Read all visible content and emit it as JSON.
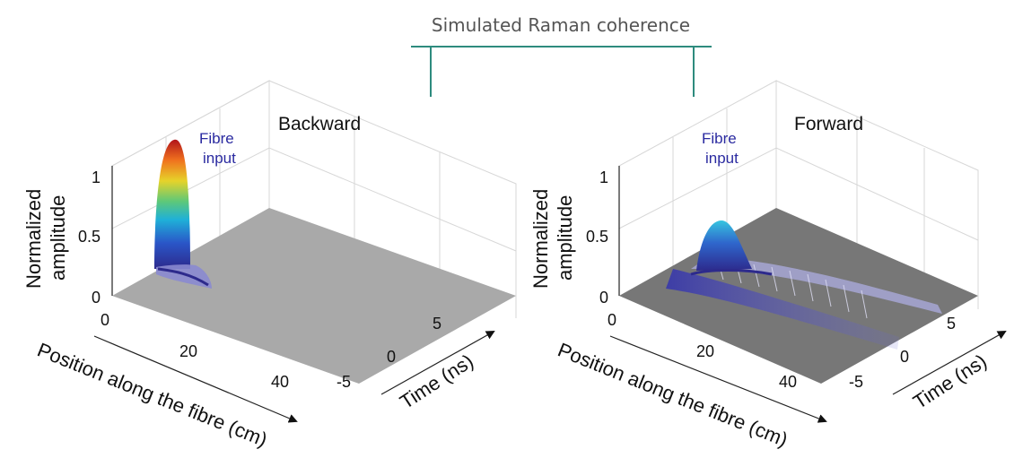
{
  "figure_title": "Simulated Raman coherence",
  "colors": {
    "bracket": "#2e8b7e",
    "floor_backward": "#a9a9a9",
    "floor_forward": "#777777",
    "annotation": "#2a2aa0"
  },
  "chart_data": [
    {
      "type": "surface",
      "panel_title": "Backward",
      "annotation": [
        "Fibre",
        "input"
      ],
      "xlabel": "Position along the fibre (cm)",
      "ylabel": "Time (ns)",
      "zlabel": [
        "Normalized",
        "amplitude"
      ],
      "x_ticks": [
        "0",
        "20",
        "40"
      ],
      "y_ticks": [
        "-5",
        "0",
        "5"
      ],
      "z_ticks": [
        "0",
        "0.5",
        "1"
      ],
      "xlim": [
        0,
        50
      ],
      "ylim": [
        -8,
        8
      ],
      "zlim": [
        0,
        1
      ],
      "peak": {
        "position_cm": 7,
        "time_ns": -4,
        "amplitude": 1.0
      }
    },
    {
      "type": "surface",
      "panel_title": "Forward",
      "annotation": [
        "Fibre",
        "input"
      ],
      "xlabel": "Position along the fibre (cm)",
      "ylabel": "Time (ns)",
      "zlabel": [
        "Normalized",
        "amplitude"
      ],
      "x_ticks": [
        "0",
        "20",
        "40"
      ],
      "y_ticks": [
        "-5",
        "0",
        "5"
      ],
      "z_ticks": [
        "0",
        "0.5",
        "1"
      ],
      "xlim": [
        0,
        50
      ],
      "ylim": [
        -8,
        8
      ],
      "zlim": [
        0,
        1
      ],
      "peak": {
        "position_cm": 5,
        "time_ns": -3,
        "amplitude": 0.5
      }
    }
  ]
}
